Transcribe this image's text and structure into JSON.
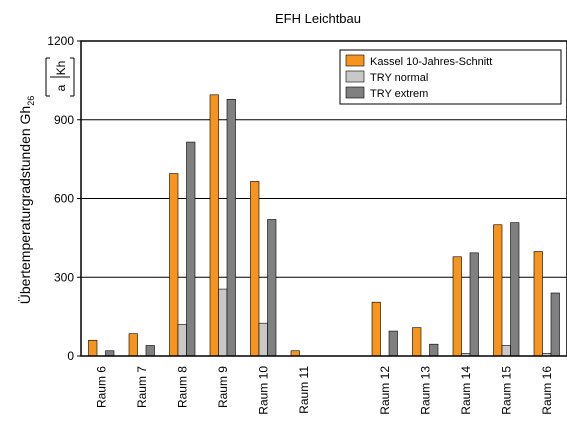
{
  "chart_data": {
    "type": "bar",
    "title": "EFH Leichtbau",
    "ylabel": "Übertemperaturgradstunden Gh",
    "ylabel_sub": "26",
    "yunit_num": "Kh",
    "yunit_den": "a",
    "ylim": [
      0,
      1200
    ],
    "yticks": [
      0,
      300,
      600,
      900,
      1200
    ],
    "grid": true,
    "legend_position": "top-right",
    "categories": [
      "Raum 6",
      "Raum 7",
      "Raum 8",
      "Raum 9",
      "Raum 10",
      "Raum 11",
      "",
      "Raum 12",
      "Raum 13",
      "Raum 14",
      "Raum 15",
      "Raum 16"
    ],
    "series": [
      {
        "name": "Kassel 10-Jahres-Schnitt",
        "color": "#f7941d",
        "values": [
          60,
          85,
          695,
          995,
          665,
          20,
          null,
          205,
          108,
          378,
          500,
          398
        ]
      },
      {
        "name": "TRY normal",
        "color": "#c8c8c8",
        "values": [
          0,
          0,
          120,
          255,
          125,
          0,
          null,
          0,
          0,
          10,
          40,
          10
        ]
      },
      {
        "name": "TRY extrem",
        "color": "#808080",
        "values": [
          20,
          40,
          815,
          978,
          520,
          0,
          null,
          95,
          45,
          393,
          508,
          240
        ]
      }
    ]
  }
}
